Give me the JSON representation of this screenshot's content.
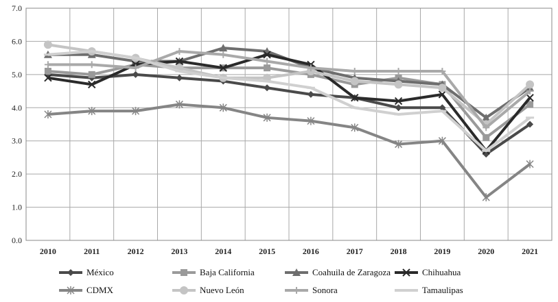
{
  "chart_data": {
    "type": "line",
    "title": "",
    "xlabel": "",
    "ylabel": "",
    "ylim": [
      0,
      7
    ],
    "yticks": [
      "0.0",
      "1.0",
      "2.0",
      "3.0",
      "4.0",
      "5.0",
      "6.0",
      "7.0"
    ],
    "grid": true,
    "legend_position": "bottom",
    "categories": [
      "2010",
      "2011",
      "2012",
      "2013",
      "2014",
      "2015",
      "2016",
      "2017",
      "2018",
      "2019",
      "2020",
      "2021"
    ],
    "series": [
      {
        "name": "México",
        "color": "#4a4a4a",
        "marker": "diamond",
        "values": [
          5.0,
          4.9,
          5.0,
          4.9,
          4.8,
          4.6,
          4.4,
          4.3,
          4.0,
          4.0,
          2.6,
          3.5
        ]
      },
      {
        "name": "Baja California",
        "color": "#9a9a9a",
        "marker": "square",
        "values": [
          5.1,
          5.0,
          5.3,
          5.2,
          5.2,
          5.2,
          5.0,
          4.7,
          4.9,
          4.7,
          3.1,
          4.1
        ]
      },
      {
        "name": "Coahuila de Zaragoza",
        "color": "#6e6e6e",
        "marker": "triangle",
        "values": [
          5.6,
          5.6,
          5.4,
          5.4,
          5.8,
          5.7,
          5.2,
          4.9,
          4.8,
          4.7,
          3.7,
          4.6
        ]
      },
      {
        "name": "Chihuahua",
        "color": "#2a2a2a",
        "marker": "x",
        "values": [
          4.9,
          4.7,
          5.3,
          5.4,
          5.2,
          5.6,
          5.3,
          4.3,
          4.2,
          4.4,
          2.7,
          4.3
        ]
      },
      {
        "name": "CDMX",
        "color": "#858585",
        "marker": "star",
        "values": [
          3.8,
          3.9,
          3.9,
          4.1,
          4.0,
          3.7,
          3.6,
          3.4,
          2.9,
          3.0,
          1.3,
          2.3
        ]
      },
      {
        "name": "Nuevo León",
        "color": "#c4c4c4",
        "marker": "circle",
        "values": [
          5.9,
          5.7,
          5.5,
          5.2,
          4.9,
          4.9,
          5.1,
          4.8,
          4.7,
          4.6,
          3.5,
          4.7
        ]
      },
      {
        "name": "Sonora",
        "color": "#a9a9a9",
        "marker": "plus",
        "values": [
          5.3,
          5.3,
          5.2,
          5.7,
          5.6,
          5.4,
          5.2,
          5.1,
          5.1,
          5.1,
          3.4,
          4.5
        ]
      },
      {
        "name": "Tamaulipas",
        "color": "#d0d0d0",
        "marker": "dash",
        "values": [
          5.6,
          5.7,
          5.5,
          5.1,
          4.9,
          4.8,
          4.6,
          4.0,
          3.8,
          3.9,
          2.7,
          3.7
        ]
      }
    ]
  }
}
